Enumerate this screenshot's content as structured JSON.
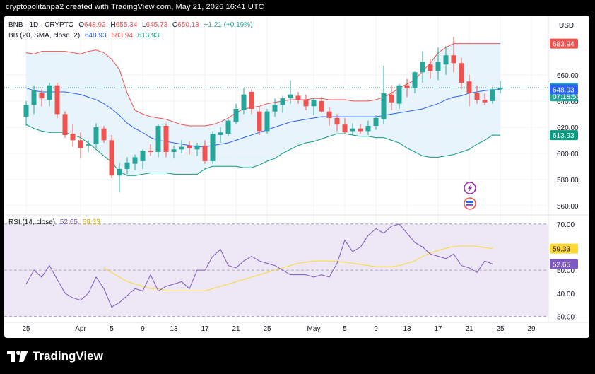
{
  "header": {
    "text": "cryptopolitanpa2 created with TradingView.com, May 21, 2026 16:41 UTC"
  },
  "symbol": {
    "name": "BNB · 1D · CRYPTO",
    "open_label": "O",
    "open": "648.92",
    "high_label": "H",
    "high": "655.34",
    "low_label": "L",
    "low": "645.73",
    "close_label": "C",
    "close": "650.13",
    "change": "+1.21 (+0.19%)"
  },
  "bb": {
    "label": "BB (20, SMA, close, 2)",
    "basis": "648.93",
    "upper": "683.94",
    "lower": "613.93"
  },
  "rsi": {
    "label": "RSI (14, close)",
    "value": "52.65",
    "ma": "59.33"
  },
  "currency": "USD",
  "brand": "TradingView",
  "colors": {
    "up": "#26a69a",
    "down": "#ef5350",
    "upper": "#ef5350",
    "basis": "#2962ff",
    "lower": "#089981",
    "rsi": "#7e57c2",
    "rsima": "#fdd835",
    "band_fill": "#e8f4fb",
    "rsi_fill": "#ede7f6"
  },
  "chart_data": [
    {
      "type": "candlestick",
      "title": "BNB · 1D · CRYPTO",
      "ylim": [
        555,
        700
      ],
      "price_ticks": [
        560,
        580,
        600,
        620,
        640,
        660
      ],
      "x_tick_labels": [
        "25",
        "Apr",
        "5",
        "9",
        "13",
        "17",
        "21",
        "25",
        "May",
        "5",
        "9",
        "13",
        "17",
        "21",
        "25",
        "29"
      ],
      "x_tick_days": [
        0,
        7,
        11,
        15,
        19,
        23,
        27,
        31,
        37,
        41,
        45,
        49,
        53,
        57,
        61,
        65
      ],
      "current_price_label": "650.13",
      "countdown": "07:18:55",
      "candles": [
        {
          "o": 628,
          "h": 640,
          "l": 621,
          "c": 637
        },
        {
          "o": 637,
          "h": 652,
          "l": 630,
          "c": 648
        },
        {
          "o": 646,
          "h": 649,
          "l": 636,
          "c": 642
        },
        {
          "o": 641,
          "h": 654,
          "l": 636,
          "c": 652
        },
        {
          "o": 652,
          "h": 654,
          "l": 627,
          "c": 630
        },
        {
          "o": 630,
          "h": 632,
          "l": 612,
          "c": 614
        },
        {
          "o": 615,
          "h": 622,
          "l": 605,
          "c": 610
        },
        {
          "o": 610,
          "h": 616,
          "l": 596,
          "c": 604
        },
        {
          "o": 606,
          "h": 610,
          "l": 601,
          "c": 607
        },
        {
          "o": 607,
          "h": 623,
          "l": 604,
          "c": 620
        },
        {
          "o": 619,
          "h": 621,
          "l": 608,
          "c": 610
        },
        {
          "o": 610,
          "h": 614,
          "l": 581,
          "c": 583
        },
        {
          "o": 583,
          "h": 593,
          "l": 570,
          "c": 588
        },
        {
          "o": 588,
          "h": 597,
          "l": 584,
          "c": 593
        },
        {
          "o": 592,
          "h": 599,
          "l": 587,
          "c": 597
        },
        {
          "o": 594,
          "h": 603,
          "l": 588,
          "c": 602
        },
        {
          "o": 602,
          "h": 607,
          "l": 598,
          "c": 601
        },
        {
          "o": 601,
          "h": 622,
          "l": 597,
          "c": 621
        },
        {
          "o": 621,
          "h": 623,
          "l": 597,
          "c": 601
        },
        {
          "o": 601,
          "h": 606,
          "l": 596,
          "c": 603
        },
        {
          "o": 603,
          "h": 610,
          "l": 600,
          "c": 605
        },
        {
          "o": 606,
          "h": 609,
          "l": 599,
          "c": 604
        },
        {
          "o": 603,
          "h": 608,
          "l": 598,
          "c": 606
        },
        {
          "o": 606,
          "h": 610,
          "l": 592,
          "c": 594
        },
        {
          "o": 594,
          "h": 617,
          "l": 592,
          "c": 615
        },
        {
          "o": 614,
          "h": 620,
          "l": 608,
          "c": 616
        },
        {
          "o": 615,
          "h": 626,
          "l": 613,
          "c": 625
        },
        {
          "o": 624,
          "h": 638,
          "l": 622,
          "c": 634
        },
        {
          "o": 633,
          "h": 650,
          "l": 630,
          "c": 645
        },
        {
          "o": 647,
          "h": 649,
          "l": 630,
          "c": 634
        },
        {
          "o": 632,
          "h": 635,
          "l": 614,
          "c": 617
        },
        {
          "o": 617,
          "h": 634,
          "l": 615,
          "c": 632
        },
        {
          "o": 632,
          "h": 642,
          "l": 628,
          "c": 637
        },
        {
          "o": 637,
          "h": 644,
          "l": 631,
          "c": 642
        },
        {
          "o": 642,
          "h": 656,
          "l": 638,
          "c": 645
        },
        {
          "o": 644,
          "h": 647,
          "l": 638,
          "c": 641
        },
        {
          "o": 641,
          "h": 645,
          "l": 633,
          "c": 636
        },
        {
          "o": 636,
          "h": 642,
          "l": 629,
          "c": 641
        },
        {
          "o": 640,
          "h": 643,
          "l": 631,
          "c": 632
        },
        {
          "o": 632,
          "h": 635,
          "l": 621,
          "c": 627
        },
        {
          "o": 627,
          "h": 630,
          "l": 617,
          "c": 622
        },
        {
          "o": 622,
          "h": 627,
          "l": 615,
          "c": 616
        },
        {
          "o": 617,
          "h": 623,
          "l": 614,
          "c": 619
        },
        {
          "o": 619,
          "h": 622,
          "l": 615,
          "c": 617
        },
        {
          "o": 617,
          "h": 625,
          "l": 614,
          "c": 621
        },
        {
          "o": 621,
          "h": 629,
          "l": 618,
          "c": 627
        },
        {
          "o": 626,
          "h": 667,
          "l": 622,
          "c": 646
        },
        {
          "o": 645,
          "h": 652,
          "l": 633,
          "c": 639
        },
        {
          "o": 638,
          "h": 653,
          "l": 634,
          "c": 652
        },
        {
          "o": 652,
          "h": 657,
          "l": 643,
          "c": 650
        },
        {
          "o": 650,
          "h": 663,
          "l": 646,
          "c": 662
        },
        {
          "o": 662,
          "h": 678,
          "l": 654,
          "c": 670
        },
        {
          "o": 668,
          "h": 672,
          "l": 657,
          "c": 663
        },
        {
          "o": 663,
          "h": 681,
          "l": 656,
          "c": 670
        },
        {
          "o": 668,
          "h": 682,
          "l": 660,
          "c": 675
        },
        {
          "o": 675,
          "h": 689,
          "l": 662,
          "c": 669
        },
        {
          "o": 669,
          "h": 673,
          "l": 649,
          "c": 654
        },
        {
          "o": 655,
          "h": 660,
          "l": 636,
          "c": 646
        },
        {
          "o": 646,
          "h": 652,
          "l": 638,
          "c": 641
        },
        {
          "o": 641,
          "h": 646,
          "l": 637,
          "c": 639
        },
        {
          "o": 640,
          "h": 651,
          "l": 638,
          "c": 649
        },
        {
          "o": 648.92,
          "h": 655.34,
          "l": 645.73,
          "c": 650.13
        }
      ],
      "bb_upper": [
        677,
        676,
        678,
        678,
        678,
        678,
        677,
        676,
        678,
        679,
        677,
        672,
        664,
        646,
        633,
        630,
        628,
        627,
        626,
        624,
        622,
        621,
        621,
        621,
        622,
        624,
        627,
        631,
        634,
        635,
        636,
        638,
        639,
        640,
        641,
        641,
        641,
        642,
        642,
        641,
        641,
        641,
        640,
        640,
        640,
        641,
        643,
        646,
        650,
        653,
        656,
        663,
        669,
        677,
        681,
        684,
        684,
        684,
        684,
        684,
        684,
        683.94
      ],
      "bb_basis": [
        650,
        648,
        647,
        647,
        647,
        647,
        646,
        645,
        643,
        641,
        638,
        634,
        629,
        623,
        619,
        616,
        612,
        610,
        609,
        608,
        607,
        606,
        605,
        605,
        606,
        607,
        608,
        610,
        612,
        614,
        616,
        618,
        620,
        622,
        624,
        625,
        626,
        627,
        628,
        628,
        628,
        628,
        628,
        628,
        628,
        628,
        629,
        630,
        631,
        632,
        633,
        634,
        636,
        638,
        641,
        643,
        644,
        646,
        647,
        648,
        648.5,
        648.93
      ],
      "bb_lower": [
        622,
        619,
        617,
        616,
        616,
        616,
        614,
        612,
        608,
        603,
        598,
        593,
        586,
        583,
        583,
        584,
        585,
        585,
        585,
        584,
        584,
        584,
        584,
        588,
        590,
        590,
        590,
        590,
        589,
        589,
        591,
        594,
        596,
        600,
        603,
        606,
        608,
        609,
        611,
        613,
        615,
        615,
        614,
        613,
        613,
        612,
        612,
        610,
        608,
        604,
        601,
        598,
        597,
        597,
        598,
        599,
        601,
        603,
        607,
        610,
        614,
        613.93
      ]
    },
    {
      "type": "line",
      "title": "RSI (14, close)",
      "ylim": [
        28,
        73
      ],
      "ticks": [
        30,
        40,
        50,
        60,
        70
      ],
      "band": [
        30,
        70
      ],
      "series": [
        {
          "name": "RSI",
          "values": [
            44,
            50,
            47,
            52,
            46,
            40,
            38,
            37,
            40,
            47,
            42,
            34,
            36,
            39,
            42,
            41,
            48,
            41,
            43,
            44,
            45,
            42,
            50,
            50,
            56,
            59,
            52,
            51,
            54,
            56,
            54,
            53,
            52,
            50,
            48,
            48,
            48,
            47,
            48,
            47,
            53,
            63,
            58,
            60,
            65,
            68,
            66,
            69,
            70,
            66,
            62,
            60,
            57,
            56,
            55,
            57,
            52,
            51,
            49,
            54,
            52.65
          ],
          "x_start": 1
        },
        {
          "name": "RSI MA",
          "values": [
            51,
            49,
            47,
            45,
            44,
            43,
            42,
            42,
            41,
            41,
            41,
            41,
            41,
            41,
            42,
            43,
            44,
            45,
            46,
            47,
            48,
            49,
            50,
            51,
            52,
            53,
            53.5,
            54,
            54,
            54,
            53.8,
            53.5,
            53,
            52.5,
            52,
            51.5,
            51.5,
            51.5,
            52,
            53,
            54,
            56,
            57.5,
            58.5,
            59.5,
            60.2,
            60.5,
            60.5,
            60.3,
            59.8,
            59.33
          ],
          "x_start": 11
        }
      ]
    }
  ]
}
